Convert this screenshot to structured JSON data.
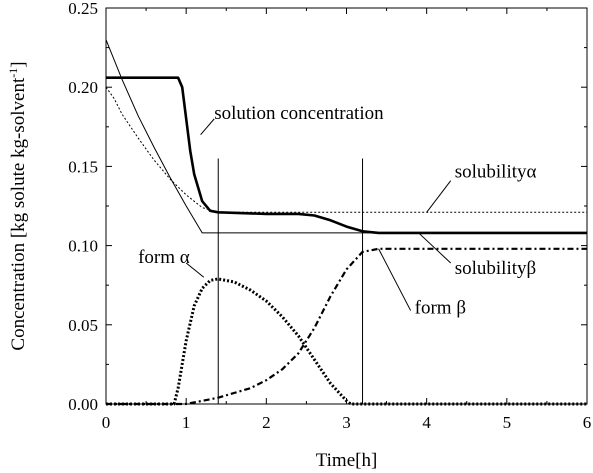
{
  "chart_data": {
    "type": "line",
    "title": "",
    "xlabel": "Time[h]",
    "ylabel": "Concentration [kg solute kg-solvent",
    "ylabel_superscript": "-1",
    "ylabel_suffix": "]",
    "xlim": [
      0,
      6
    ],
    "ylim": [
      0,
      0.25
    ],
    "x_ticks": [
      0,
      1,
      2,
      3,
      4,
      5,
      6
    ],
    "x_tick_labels": [
      "0",
      "1",
      "2",
      "3",
      "4",
      "5",
      "6"
    ],
    "y_ticks": [
      0,
      0.05,
      0.1,
      0.15,
      0.2,
      0.25
    ],
    "y_tick_labels": [
      "0.00",
      "0.05",
      "0.10",
      "0.15",
      "0.20",
      "0.25"
    ],
    "grid": false,
    "legend": "none",
    "series": [
      {
        "name": "solution concentration",
        "style": "thick-solid",
        "x": [
          0,
          0.9,
          0.95,
          1.0,
          1.05,
          1.1,
          1.2,
          1.3,
          1.4,
          2.0,
          2.4,
          2.6,
          2.8,
          3.0,
          3.2,
          3.4,
          4.0,
          5.0,
          6.0
        ],
        "y": [
          0.206,
          0.206,
          0.2,
          0.18,
          0.16,
          0.145,
          0.128,
          0.122,
          0.121,
          0.12,
          0.12,
          0.119,
          0.116,
          0.112,
          0.109,
          0.108,
          0.108,
          0.108,
          0.108
        ]
      },
      {
        "name": "solubility α",
        "style": "dotted",
        "x": [
          0,
          0.1,
          0.2,
          0.4,
          0.6,
          0.8,
          1.0,
          1.2,
          1.4,
          2.0,
          4.0,
          6.0
        ],
        "y": [
          0.2,
          0.193,
          0.183,
          0.168,
          0.154,
          0.142,
          0.132,
          0.124,
          0.121,
          0.121,
          0.121,
          0.121
        ]
      },
      {
        "name": "solubility β",
        "style": "thin-solid",
        "x": [
          0,
          0.2,
          0.4,
          0.6,
          0.8,
          1.0,
          1.2,
          1.4,
          2.0,
          4.0,
          6.0
        ],
        "y": [
          0.23,
          0.205,
          0.182,
          0.162,
          0.143,
          0.125,
          0.108,
          0.108,
          0.108,
          0.108,
          0.108
        ]
      },
      {
        "name": "form α",
        "style": "dense-dotted",
        "x": [
          0,
          0.85,
          0.9,
          1.0,
          1.1,
          1.2,
          1.3,
          1.4,
          1.6,
          1.8,
          2.0,
          2.2,
          2.4,
          2.6,
          2.8,
          3.0,
          3.05,
          3.2,
          6.0
        ],
        "y": [
          0,
          0,
          0.01,
          0.04,
          0.062,
          0.073,
          0.078,
          0.079,
          0.077,
          0.072,
          0.065,
          0.055,
          0.043,
          0.028,
          0.013,
          0.002,
          0,
          0,
          0
        ]
      },
      {
        "name": "form β",
        "style": "dash-dot",
        "x": [
          0,
          1.0,
          1.4,
          1.8,
          2.0,
          2.2,
          2.4,
          2.6,
          2.8,
          3.0,
          3.2,
          3.4,
          4.0,
          5.0,
          6.0
        ],
        "y": [
          0,
          0,
          0.004,
          0.01,
          0.015,
          0.022,
          0.032,
          0.048,
          0.068,
          0.085,
          0.096,
          0.098,
          0.098,
          0.098,
          0.098
        ]
      }
    ],
    "vertical_lines": [
      1.4,
      3.2
    ],
    "annotations": [
      {
        "text": "solution concentration",
        "at": [
          1.35,
          0.18
        ]
      },
      {
        "text": "solubility",
        "greek": "α",
        "at": [
          4.35,
          0.143
        ]
      },
      {
        "text": "solubility",
        "greek": "β",
        "at": [
          4.35,
          0.082
        ]
      },
      {
        "text": "form ",
        "greek": "α",
        "at": [
          0.4,
          0.089
        ]
      },
      {
        "text": "form ",
        "greek": "β",
        "at": [
          3.85,
          0.057
        ]
      }
    ]
  }
}
